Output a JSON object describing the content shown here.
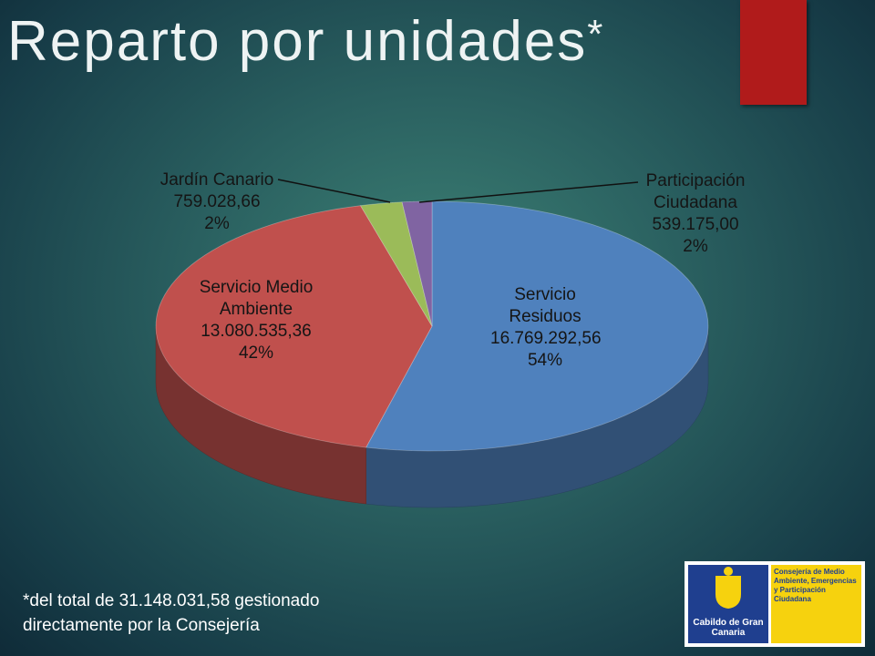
{
  "title": "Reparto por unidades",
  "title_mark": "*",
  "chart_data": {
    "type": "pie",
    "categories": [
      "Servicio Residuos",
      "Servicio Medio Ambiente",
      "Jardín Canario",
      "Participación Ciudadana"
    ],
    "values": [
      16769292.56,
      13080535.36,
      759028.66,
      539175.0
    ],
    "value_labels": [
      "16.769.292,56",
      "13.080.535,36",
      "759.028,66",
      "539.175,00"
    ],
    "percents": [
      54,
      42,
      2,
      2
    ],
    "percent_labels": [
      "54%",
      "42%",
      "2%",
      "2%"
    ],
    "colors": [
      "#4f81bd",
      "#c0504d",
      "#9bbb59",
      "#8064a2"
    ]
  },
  "footnote": "*del total de 31.148.031,58 gestionado directamente por la Consejería",
  "logo": {
    "left": "Cabildo de Gran Canaria",
    "right": "Consejería de Medio Ambiente, Emergencias y Participación Ciudadana"
  }
}
